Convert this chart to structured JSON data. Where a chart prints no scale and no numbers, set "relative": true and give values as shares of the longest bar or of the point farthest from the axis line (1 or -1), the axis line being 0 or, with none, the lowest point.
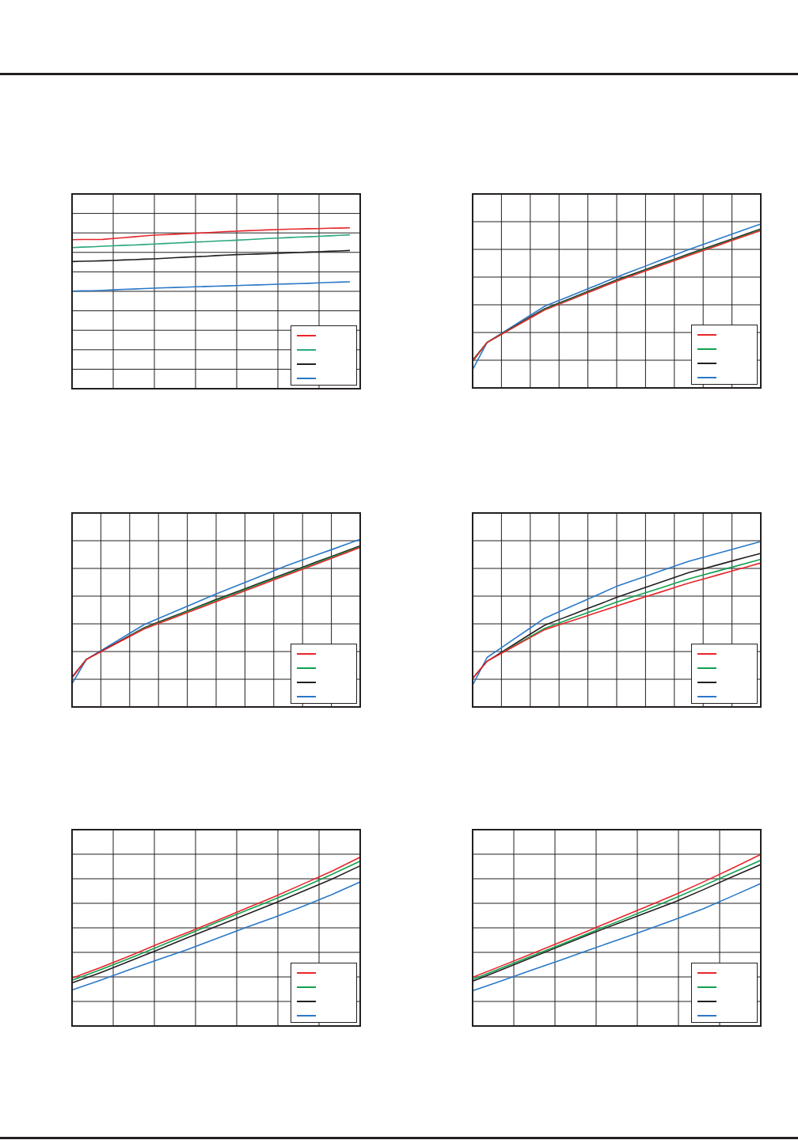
{
  "chart_data": [
    {
      "type": "line",
      "relative": true,
      "grid": true,
      "categories": [
        null,
        null,
        null,
        null,
        null,
        null,
        null,
        null,
        null,
        null,
        null,
        null,
        null,
        null,
        null,
        null,
        null,
        null,
        null,
        null,
        null,
        null,
        null,
        null,
        null,
        null,
        null,
        null,
        null
      ],
      "series": [
        {
          "color": "#e8262b",
          "values": [
            0.926,
            0.927,
            0.927,
            0.928,
            0.933,
            0.938,
            0.944,
            0.949,
            0.954,
            0.957,
            0.96,
            0.963,
            0.966,
            0.969,
            0.973,
            0.976,
            0.979,
            0.982,
            0.984,
            0.987,
            0.989,
            0.991,
            0.992,
            0.994,
            0.995,
            0.997,
            0.998,
            1.0,
            null
          ]
        },
        {
          "color": "#2aa87a",
          "values": [
            0.877,
            0.88,
            0.882,
            0.885,
            0.888,
            0.891,
            0.893,
            0.896,
            0.899,
            0.902,
            0.905,
            0.908,
            0.911,
            0.914,
            0.917,
            0.92,
            0.923,
            0.926,
            0.93,
            0.933,
            0.936,
            0.939,
            0.942,
            0.944,
            0.947,
            0.95,
            0.953,
            0.956,
            null
          ]
        },
        {
          "color": "#231f20",
          "values": [
            0.79,
            0.792,
            0.793,
            0.795,
            0.797,
            0.8,
            0.802,
            0.805,
            0.807,
            0.81,
            0.814,
            0.817,
            0.82,
            0.823,
            0.827,
            0.83,
            0.833,
            0.835,
            0.837,
            0.839,
            0.841,
            0.844,
            0.846,
            0.849,
            0.851,
            0.854,
            0.856,
            0.859,
            null
          ]
        },
        {
          "color": "#2a78c8",
          "values": [
            0.606,
            0.608,
            0.609,
            0.611,
            0.614,
            0.617,
            0.619,
            0.622,
            0.625,
            0.627,
            0.629,
            0.631,
            0.633,
            0.635,
            0.637,
            0.639,
            0.641,
            0.643,
            0.645,
            0.647,
            0.649,
            0.651,
            0.653,
            0.655,
            0.658,
            0.66,
            0.662,
            0.664,
            null
          ]
        }
      ]
    },
    {
      "type": "line",
      "relative": true,
      "grid": true,
      "categories": [
        null,
        null,
        null,
        null,
        null,
        null,
        null,
        null,
        null,
        null,
        null,
        null,
        null,
        null,
        null,
        null,
        null,
        null,
        null,
        null,
        null
      ],
      "series": [
        {
          "color": "#e8262b",
          "values": [
            0.164,
            0.277,
            0.327,
            0.376,
            0.426,
            0.475,
            0.51,
            0.545,
            0.581,
            0.616,
            0.651,
            0.682,
            0.713,
            0.745,
            0.776,
            0.807,
            0.838,
            0.868,
            0.899,
            0.929,
            0.96
          ]
        },
        {
          "color": "#12a04e",
          "values": [
            0.161,
            0.277,
            0.327,
            0.377,
            0.428,
            0.478,
            0.513,
            0.548,
            0.584,
            0.619,
            0.654,
            0.685,
            0.717,
            0.748,
            0.78,
            0.811,
            0.842,
            0.872,
            0.903,
            0.933,
            0.964
          ]
        },
        {
          "color": "#231f20",
          "values": [
            0.169,
            0.277,
            0.329,
            0.38,
            0.432,
            0.483,
            0.518,
            0.553,
            0.589,
            0.624,
            0.659,
            0.691,
            0.722,
            0.754,
            0.785,
            0.817,
            0.847,
            0.878,
            0.908,
            0.939,
            0.969
          ]
        },
        {
          "color": "#2a78c8",
          "values": [
            0.112,
            0.277,
            0.332,
            0.388,
            0.443,
            0.498,
            0.534,
            0.569,
            0.605,
            0.64,
            0.676,
            0.71,
            0.743,
            0.777,
            0.81,
            0.844,
            0.875,
            0.906,
            0.938,
            0.969,
            1.0
          ]
        }
      ]
    },
    {
      "type": "line",
      "relative": true,
      "grid": true,
      "categories": [
        null,
        null,
        null,
        null,
        null,
        null,
        null,
        null,
        null,
        null,
        null,
        null,
        null,
        null,
        null,
        null,
        null,
        null,
        null,
        null,
        null
      ],
      "series": [
        {
          "color": "#e8262b",
          "values": [
            0.174,
            0.284,
            0.329,
            0.375,
            0.42,
            0.465,
            0.498,
            0.53,
            0.563,
            0.595,
            0.628,
            0.66,
            0.693,
            0.725,
            0.758,
            0.79,
            0.822,
            0.854,
            0.887,
            0.919,
            0.951
          ]
        },
        {
          "color": "#12a04e",
          "values": [
            null,
            null,
            null,
            null,
            0.423,
            0.469,
            0.502,
            0.535,
            0.569,
            0.602,
            0.635,
            0.667,
            0.699,
            0.732,
            0.764,
            0.796,
            0.828,
            0.86,
            0.892,
            0.923,
            0.955
          ]
        },
        {
          "color": "#231f20",
          "values": [
            0.178,
            0.284,
            0.331,
            0.378,
            0.425,
            0.472,
            0.506,
            0.54,
            0.573,
            0.607,
            0.641,
            0.673,
            0.705,
            0.738,
            0.77,
            0.802,
            0.834,
            0.866,
            0.897,
            0.929,
            0.961
          ]
        },
        {
          "color": "#2a78c8",
          "values": [
            0.139,
            0.284,
            0.336,
            0.388,
            0.439,
            0.491,
            0.528,
            0.564,
            0.601,
            0.637,
            0.674,
            0.708,
            0.743,
            0.777,
            0.812,
            0.846,
            0.877,
            0.908,
            0.938,
            0.969,
            1.0
          ]
        }
      ]
    },
    {
      "type": "line",
      "relative": true,
      "grid": true,
      "categories": [
        null,
        null,
        null,
        null,
        null,
        null,
        null,
        null,
        null,
        null,
        null,
        null,
        null,
        null,
        null,
        null,
        null,
        null,
        null,
        null,
        null
      ],
      "series": [
        {
          "color": "#e8262b",
          "values": [
            0.172,
            0.276,
            0.324,
            0.372,
            0.419,
            0.467,
            0.496,
            0.524,
            0.553,
            0.581,
            0.61,
            0.638,
            0.666,
            0.693,
            0.721,
            0.749,
            0.773,
            0.797,
            0.822,
            0.846,
            0.87
          ]
        },
        {
          "color": "#12a04e",
          "values": [
            null,
            null,
            0.326,
            0.376,
            0.425,
            0.475,
            0.507,
            0.539,
            0.57,
            0.602,
            0.634,
            0.662,
            0.69,
            0.718,
            0.746,
            0.774,
            0.798,
            0.821,
            0.845,
            0.868,
            0.892
          ]
        },
        {
          "color": "#231f20",
          "values": [
            0.172,
            0.276,
            0.331,
            0.385,
            0.44,
            0.494,
            0.528,
            0.561,
            0.595,
            0.628,
            0.662,
            0.692,
            0.722,
            0.752,
            0.782,
            0.812,
            0.835,
            0.858,
            0.882,
            0.905,
            0.928
          ]
        },
        {
          "color": "#2a78c8",
          "values": [
            0.132,
            0.299,
            0.358,
            0.418,
            0.477,
            0.536,
            0.575,
            0.613,
            0.652,
            0.69,
            0.729,
            0.759,
            0.789,
            0.82,
            0.85,
            0.88,
            0.904,
            0.928,
            0.952,
            0.976,
            1.0
          ]
        }
      ]
    },
    {
      "type": "line",
      "relative": true,
      "grid": true,
      "categories": [
        null,
        null,
        null,
        null,
        null,
        null,
        null,
        null,
        null,
        null,
        null
      ],
      "series": [
        {
          "color": "#e8262b",
          "values": [
            0.284,
            0.347,
            0.415,
            0.487,
            0.553,
            0.623,
            0.694,
            0.764,
            0.84,
            0.916,
            1.0
          ]
        },
        {
          "color": "#12a04e",
          "values": [
            0.271,
            0.334,
            0.401,
            0.47,
            0.542,
            0.612,
            0.681,
            0.749,
            0.821,
            0.897,
            0.977
          ]
        },
        {
          "color": "#231f20",
          "values": [
            0.256,
            0.317,
            0.385,
            0.452,
            0.523,
            0.59,
            0.658,
            0.726,
            0.797,
            0.869,
            0.949
          ]
        },
        {
          "color": "#2a78c8",
          "values": [
            0.213,
            0.272,
            0.334,
            0.394,
            0.453,
            0.517,
            0.581,
            0.643,
            0.708,
            0.777,
            0.853
          ]
        }
      ]
    },
    {
      "type": "line",
      "relative": true,
      "grid": true,
      "categories": [
        null,
        null,
        null,
        null,
        null,
        null,
        null,
        null,
        null,
        null,
        null
      ],
      "series": [
        {
          "color": "#e8262b",
          "values": [
            0.284,
            0.35,
            0.418,
            0.485,
            0.554,
            0.624,
            0.693,
            0.763,
            0.839,
            0.918,
            1.0
          ]
        },
        {
          "color": "#12a04e",
          "values": [
            0.271,
            0.338,
            0.405,
            0.471,
            0.539,
            0.606,
            0.675,
            0.744,
            0.817,
            0.891,
            0.965
          ]
        },
        {
          "color": "#231f20",
          "values": [
            0.261,
            0.328,
            0.396,
            0.463,
            0.531,
            0.595,
            0.658,
            0.722,
            0.794,
            0.868,
            0.941
          ]
        },
        {
          "color": "#2a78c8",
          "values": [
            0.205,
            0.263,
            0.323,
            0.381,
            0.441,
            0.499,
            0.558,
            0.619,
            0.683,
            0.756,
            0.83
          ]
        }
      ]
    }
  ]
}
